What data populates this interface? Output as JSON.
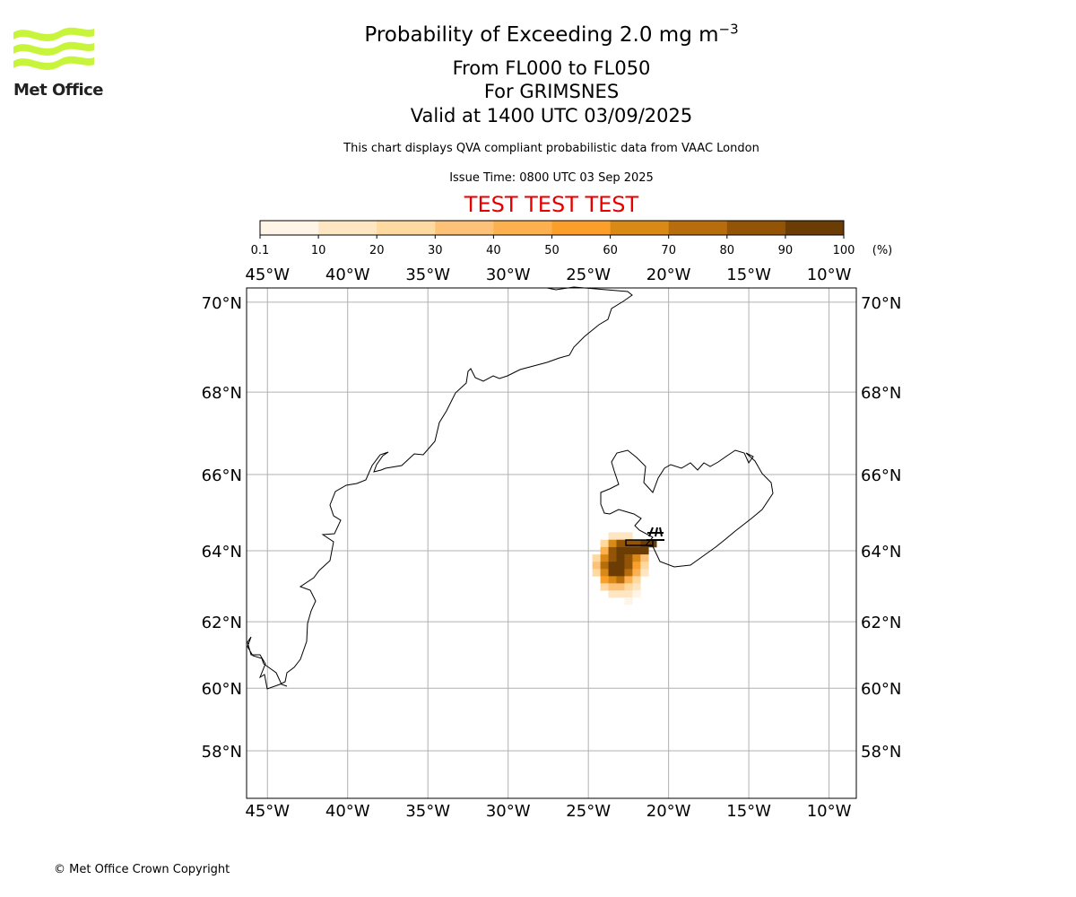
{
  "header": {
    "title": "Probability of Exceeding 2.0 mg m",
    "title_sup": "−3",
    "flight_levels": "From FL000 to FL050",
    "location": "For GRIMSNES",
    "valid_time": "Valid at 1400 UTC 03/09/2025",
    "disclaimer": "This chart displays QVA compliant probabilistic data from VAAC London",
    "issue_time": "Issue Time: 0800 UTC 03 Sep 2025",
    "test_banner": "TEST TEST TEST"
  },
  "logo": {
    "name": "Met Office",
    "color": "#c8f53c"
  },
  "colorbar": {
    "ticks": [
      "0.1",
      "10",
      "20",
      "30",
      "40",
      "50",
      "60",
      "70",
      "80",
      "90",
      "100"
    ],
    "unit": "(%)",
    "colors": [
      "#fff5e6",
      "#fee6c2",
      "#fed9a0",
      "#fdc278",
      "#fdb14e",
      "#fc9e2a",
      "#d98a16",
      "#b86d0c",
      "#945406",
      "#6b3c04"
    ]
  },
  "map": {
    "lon_labels": [
      "45°W",
      "40°W",
      "35°W",
      "30°W",
      "25°W",
      "20°W",
      "15°W",
      "10°W"
    ],
    "lon_values": [
      -45,
      -40,
      -35,
      -30,
      -25,
      -20,
      -15,
      -10
    ],
    "lat_labels": [
      "70°N",
      "68°N",
      "66°N",
      "64°N",
      "62°N",
      "60°N",
      "58°N"
    ],
    "lat_values": [
      70,
      68,
      66,
      64,
      62,
      60,
      58
    ],
    "extent": {
      "lon_min": -46.3,
      "lon_max": -8.3,
      "lat_min": 56.4,
      "lat_max": 70.3
    },
    "volcano": {
      "lon": -20.9,
      "lat": 64.0
    }
  },
  "probability_grid": [
    [
      -23.5,
      64.4,
      1
    ],
    [
      -23.0,
      64.4,
      1
    ],
    [
      -22.5,
      64.4,
      1
    ],
    [
      -24.0,
      64.2,
      2
    ],
    [
      -23.5,
      64.2,
      6
    ],
    [
      -23.0,
      64.2,
      8
    ],
    [
      -22.5,
      64.2,
      8
    ],
    [
      -22.0,
      64.2,
      8
    ],
    [
      -21.5,
      64.2,
      9
    ],
    [
      -21.0,
      64.2,
      9
    ],
    [
      -24.0,
      64.0,
      4
    ],
    [
      -23.5,
      64.0,
      8
    ],
    [
      -23.0,
      64.0,
      9
    ],
    [
      -22.5,
      64.0,
      9
    ],
    [
      -22.0,
      64.0,
      9
    ],
    [
      -21.5,
      64.0,
      9
    ],
    [
      -24.5,
      63.8,
      2
    ],
    [
      -24.0,
      63.8,
      6
    ],
    [
      -23.5,
      63.8,
      8
    ],
    [
      -23.0,
      63.8,
      9
    ],
    [
      -22.5,
      63.8,
      8
    ],
    [
      -22.0,
      63.8,
      6
    ],
    [
      -21.5,
      63.8,
      3
    ],
    [
      -24.5,
      63.6,
      3
    ],
    [
      -24.0,
      63.6,
      7
    ],
    [
      -23.5,
      63.6,
      9
    ],
    [
      -23.0,
      63.6,
      9
    ],
    [
      -22.5,
      63.6,
      8
    ],
    [
      -22.0,
      63.6,
      5
    ],
    [
      -21.5,
      63.6,
      2
    ],
    [
      -24.5,
      63.4,
      2
    ],
    [
      -24.0,
      63.4,
      6
    ],
    [
      -23.5,
      63.4,
      9
    ],
    [
      -23.0,
      63.4,
      9
    ],
    [
      -22.5,
      63.4,
      7
    ],
    [
      -22.0,
      63.4,
      4
    ],
    [
      -21.5,
      63.4,
      1
    ],
    [
      -24.0,
      63.2,
      5
    ],
    [
      -23.5,
      63.2,
      6
    ],
    [
      -23.0,
      63.2,
      7
    ],
    [
      -22.5,
      63.2,
      4
    ],
    [
      -22.0,
      63.2,
      2
    ],
    [
      -24.0,
      63.0,
      2
    ],
    [
      -23.5,
      63.0,
      3
    ],
    [
      -23.0,
      63.0,
      3
    ],
    [
      -22.5,
      63.0,
      2
    ],
    [
      -22.0,
      63.0,
      1
    ],
    [
      -23.5,
      62.8,
      1
    ],
    [
      -23.0,
      62.8,
      1
    ],
    [
      -22.5,
      62.8,
      1
    ],
    [
      -22.0,
      62.8,
      0
    ],
    [
      -22.5,
      62.6,
      0
    ]
  ],
  "footer": {
    "copyright": "© Met Office Crown Copyright"
  }
}
